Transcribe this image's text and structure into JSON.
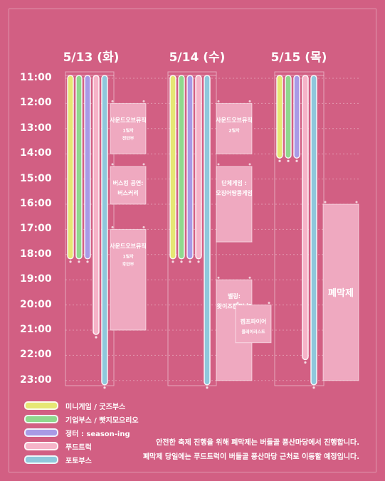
{
  "chart_data": {
    "type": "schedule",
    "days": [
      "5/13 (화)",
      "5/14 (수)",
      "5/15 (목)"
    ],
    "time_labels": [
      "11:00",
      "12:00",
      "13:00",
      "14:00",
      "15:00",
      "16:00",
      "17:00",
      "18:00",
      "19:00",
      "20:00",
      "21:00",
      "22:00",
      "23:00"
    ],
    "y_range": [
      11,
      23
    ],
    "categories": [
      {
        "name": "미니게임 / 굿즈부스",
        "color": "#e6e774"
      },
      {
        "name": "기업부스 / 빳지모으리오",
        "color": "#8fd88d"
      },
      {
        "name": "정터 : season-ing",
        "color": "#a89ae6"
      },
      {
        "name": "푸드트럭",
        "color": "#f6b3c8"
      },
      {
        "name": "포토부스",
        "color": "#8fc8dc"
      }
    ],
    "bars": [
      {
        "day": 0,
        "category": 0,
        "start": 11,
        "end": 18
      },
      {
        "day": 0,
        "category": 1,
        "start": 11,
        "end": 18
      },
      {
        "day": 0,
        "category": 2,
        "start": 11,
        "end": 18
      },
      {
        "day": 0,
        "category": 3,
        "start": 11,
        "end": 21
      },
      {
        "day": 0,
        "category": 4,
        "start": 11,
        "end": 23
      },
      {
        "day": 1,
        "category": 0,
        "start": 11,
        "end": 18
      },
      {
        "day": 1,
        "category": 1,
        "start": 11,
        "end": 18
      },
      {
        "day": 1,
        "category": 2,
        "start": 11,
        "end": 18
      },
      {
        "day": 1,
        "category": 3,
        "start": 11,
        "end": 18
      },
      {
        "day": 1,
        "category": 4,
        "start": 11,
        "end": 23
      },
      {
        "day": 2,
        "category": 0,
        "start": 11,
        "end": 14
      },
      {
        "day": 2,
        "category": 1,
        "start": 11,
        "end": 14
      },
      {
        "day": 2,
        "category": 2,
        "start": 11,
        "end": 14
      },
      {
        "day": 2,
        "category": 3,
        "start": 11,
        "end": 22
      },
      {
        "day": 2,
        "category": 4,
        "start": 11,
        "end": 23
      }
    ],
    "events": [
      {
        "day": 0,
        "start": 12,
        "end": 14,
        "title": "사운드오브뮤직",
        "detail": [
          "1일차",
          "전반부"
        ]
      },
      {
        "day": 0,
        "start": 14.5,
        "end": 16,
        "title": "버스킹 공연:",
        "detail": [
          "버스커리"
        ],
        "title_style": "bold"
      },
      {
        "day": 0,
        "start": 17,
        "end": 21,
        "title": "사운드오브뮤직",
        "detail": [
          "1일차",
          "후반부"
        ]
      },
      {
        "day": 1,
        "start": 12,
        "end": 14,
        "title": "사운드오브뮤직",
        "detail": [
          "2일차"
        ]
      },
      {
        "day": 1,
        "start": 14.5,
        "end": 17.5,
        "title": "단체게임 :",
        "detail": [
          "오징어땅콩게임"
        ]
      },
      {
        "day": 1,
        "start": 19,
        "end": 23,
        "title": "벨링:",
        "detail": [
          "왓이즈캠프닝?"
        ]
      },
      {
        "day": 1,
        "start": 20,
        "end": 21.5,
        "title": "캠프파이어",
        "detail": [
          "플레이리스트"
        ],
        "offset": 1
      },
      {
        "day": 2,
        "start": 16,
        "end": 23,
        "title": "폐막제",
        "detail": [],
        "big": true
      }
    ]
  },
  "legend": [
    {
      "label": "미니게임 / 굿즈부스"
    },
    {
      "label": "기업부스 / 빳지모으리오"
    },
    {
      "label": "정터 : season-ing"
    },
    {
      "label": "푸드트럭"
    },
    {
      "label": "포토부스"
    }
  ],
  "notices": [
    "안전한 축제 진행을 위해 폐막제는 버들골 풍산마당에서 진행합니다.",
    "폐막제 당일에는 푸드트럭이 버들골 풍산마당 근처로 이동할 예정입니다."
  ]
}
